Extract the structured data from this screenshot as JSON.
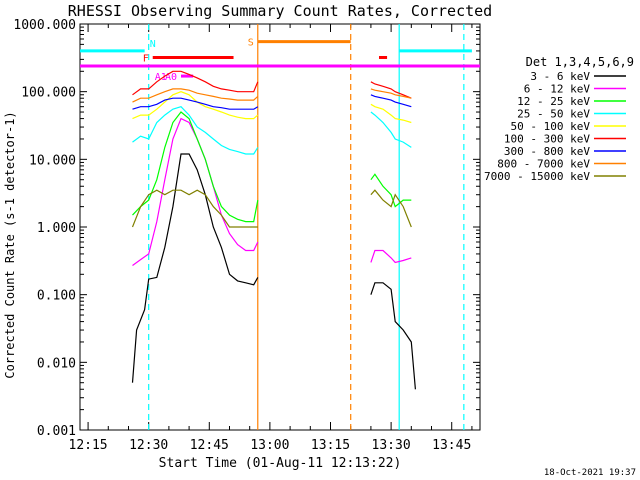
{
  "chart_data": {
    "type": "line",
    "title": "RHESSI Observing Summary Count Rates, Corrected",
    "xlabel": "Start Time (01-Aug-11 12:13:22)",
    "ylabel": "Corrected Count Rate (s-1 detector-1)",
    "yscale": "log",
    "ylim": [
      0.001,
      1000.0
    ],
    "xlim": [
      "12:13",
      "13:52"
    ],
    "x_ticks": [
      "12:15",
      "12:30",
      "12:45",
      "13:00",
      "13:15",
      "13:30",
      "13:45"
    ],
    "y_ticks": [
      "0.001",
      "0.010",
      "0.100",
      "1.000",
      "10.000",
      "100.000",
      "1000.000"
    ],
    "legend_title": "Det 1,3,4,5,6,9",
    "legend_position": "right",
    "timestamp": "18-Oct-2021 19:37",
    "gaps": [
      {
        "start": "12:57",
        "end": "13:25"
      }
    ],
    "series": [
      {
        "name": "3 - 6 keV",
        "color": "#000000",
        "points": [
          [
            "12:26",
            0.005
          ],
          [
            "12:27",
            0.03
          ],
          [
            "12:29",
            0.06
          ],
          [
            "12:30",
            0.17
          ],
          [
            "12:32",
            0.18
          ],
          [
            "12:34",
            0.5
          ],
          [
            "12:36",
            2.0
          ],
          [
            "12:38",
            12
          ],
          [
            "12:40",
            12
          ],
          [
            "12:42",
            7
          ],
          [
            "12:44",
            3
          ],
          [
            "12:46",
            1.0
          ],
          [
            "12:48",
            0.5
          ],
          [
            "12:50",
            0.2
          ],
          [
            "12:52",
            0.16
          ],
          [
            "12:54",
            0.15
          ],
          [
            "12:56",
            0.14
          ],
          [
            "12:57",
            0.18
          ]
        ],
        "points2": [
          [
            "13:25",
            0.1
          ],
          [
            "13:26",
            0.15
          ],
          [
            "13:28",
            0.15
          ],
          [
            "13:30",
            0.12
          ],
          [
            "13:31",
            0.04
          ],
          [
            "13:33",
            0.03
          ],
          [
            "13:35",
            0.02
          ],
          [
            "13:36",
            0.004
          ]
        ]
      },
      {
        "name": "6 - 12 keV",
        "color": "#ff00ff",
        "points": [
          [
            "12:26",
            0.27
          ],
          [
            "12:28",
            0.33
          ],
          [
            "12:30",
            0.4
          ],
          [
            "12:32",
            1.2
          ],
          [
            "12:34",
            5
          ],
          [
            "12:36",
            20
          ],
          [
            "12:38",
            40
          ],
          [
            "12:40",
            35
          ],
          [
            "12:42",
            20
          ],
          [
            "12:44",
            10
          ],
          [
            "12:46",
            4
          ],
          [
            "12:48",
            1.5
          ],
          [
            "12:50",
            0.8
          ],
          [
            "12:52",
            0.55
          ],
          [
            "12:54",
            0.45
          ],
          [
            "12:56",
            0.45
          ],
          [
            "12:57",
            0.6
          ]
        ],
        "points2": [
          [
            "13:25",
            0.3
          ],
          [
            "13:26",
            0.45
          ],
          [
            "13:28",
            0.45
          ],
          [
            "13:30",
            0.35
          ],
          [
            "13:31",
            0.3
          ],
          [
            "13:33",
            0.32
          ],
          [
            "13:35",
            0.35
          ]
        ]
      },
      {
        "name": "12 - 25 keV",
        "color": "#00ff00",
        "points": [
          [
            "12:26",
            1.5
          ],
          [
            "12:28",
            2.0
          ],
          [
            "12:30",
            2.5
          ],
          [
            "12:32",
            5
          ],
          [
            "12:34",
            15
          ],
          [
            "12:36",
            35
          ],
          [
            "12:38",
            50
          ],
          [
            "12:40",
            40
          ],
          [
            "12:42",
            20
          ],
          [
            "12:44",
            10
          ],
          [
            "12:46",
            4
          ],
          [
            "12:48",
            2.0
          ],
          [
            "12:50",
            1.5
          ],
          [
            "12:52",
            1.3
          ],
          [
            "12:54",
            1.2
          ],
          [
            "12:56",
            1.2
          ],
          [
            "12:57",
            2.5
          ]
        ],
        "points2": [
          [
            "13:25",
            5
          ],
          [
            "13:26",
            6
          ],
          [
            "13:28",
            4
          ],
          [
            "13:30",
            3
          ],
          [
            "13:31",
            2
          ],
          [
            "13:33",
            2.5
          ],
          [
            "13:35",
            2.5
          ]
        ]
      },
      {
        "name": "25 - 50 keV",
        "color": "#00ffff",
        "points": [
          [
            "12:26",
            18
          ],
          [
            "12:28",
            22
          ],
          [
            "12:30",
            20
          ],
          [
            "12:32",
            35
          ],
          [
            "12:34",
            45
          ],
          [
            "12:36",
            55
          ],
          [
            "12:38",
            60
          ],
          [
            "12:40",
            45
          ],
          [
            "12:42",
            30
          ],
          [
            "12:44",
            25
          ],
          [
            "12:46",
            20
          ],
          [
            "12:48",
            16
          ],
          [
            "12:50",
            14
          ],
          [
            "12:52",
            13
          ],
          [
            "12:54",
            12
          ],
          [
            "12:56",
            12
          ],
          [
            "12:57",
            15
          ]
        ],
        "points2": [
          [
            "13:25",
            50
          ],
          [
            "13:26",
            45
          ],
          [
            "13:28",
            35
          ],
          [
            "13:30",
            25
          ],
          [
            "13:31",
            20
          ],
          [
            "13:33",
            18
          ],
          [
            "13:35",
            15
          ]
        ]
      },
      {
        "name": "50 - 100 keV",
        "color": "#ffff00",
        "points": [
          [
            "12:26",
            40
          ],
          [
            "12:28",
            45
          ],
          [
            "12:30",
            45
          ],
          [
            "12:32",
            55
          ],
          [
            "12:34",
            70
          ],
          [
            "12:36",
            90
          ],
          [
            "12:38",
            100
          ],
          [
            "12:40",
            90
          ],
          [
            "12:42",
            70
          ],
          [
            "12:44",
            60
          ],
          [
            "12:46",
            55
          ],
          [
            "12:48",
            50
          ],
          [
            "12:50",
            45
          ],
          [
            "12:52",
            42
          ],
          [
            "12:54",
            40
          ],
          [
            "12:56",
            40
          ],
          [
            "12:57",
            45
          ]
        ],
        "points2": [
          [
            "13:25",
            65
          ],
          [
            "13:26",
            60
          ],
          [
            "13:28",
            55
          ],
          [
            "13:30",
            45
          ],
          [
            "13:31",
            40
          ],
          [
            "13:33",
            38
          ],
          [
            "13:35",
            35
          ]
        ]
      },
      {
        "name": "100 - 300 keV",
        "color": "#ff0000",
        "points": [
          [
            "12:26",
            90
          ],
          [
            "12:28",
            110
          ],
          [
            "12:30",
            110
          ],
          [
            "12:32",
            140
          ],
          [
            "12:34",
            170
          ],
          [
            "12:36",
            200
          ],
          [
            "12:38",
            200
          ],
          [
            "12:40",
            180
          ],
          [
            "12:42",
            160
          ],
          [
            "12:44",
            140
          ],
          [
            "12:46",
            120
          ],
          [
            "12:48",
            110
          ],
          [
            "12:50",
            105
          ],
          [
            "12:52",
            100
          ],
          [
            "12:54",
            100
          ],
          [
            "12:56",
            100
          ],
          [
            "12:57",
            140
          ]
        ],
        "points2": [
          [
            "13:25",
            140
          ],
          [
            "13:26",
            130
          ],
          [
            "13:28",
            120
          ],
          [
            "13:30",
            110
          ],
          [
            "13:31",
            100
          ],
          [
            "13:33",
            90
          ],
          [
            "13:35",
            80
          ]
        ]
      },
      {
        "name": "300 - 800 keV",
        "color": "#0000ff",
        "points": [
          [
            "12:26",
            55
          ],
          [
            "12:28",
            60
          ],
          [
            "12:30",
            60
          ],
          [
            "12:32",
            65
          ],
          [
            "12:34",
            75
          ],
          [
            "12:36",
            80
          ],
          [
            "12:38",
            80
          ],
          [
            "12:40",
            75
          ],
          [
            "12:42",
            70
          ],
          [
            "12:44",
            65
          ],
          [
            "12:46",
            60
          ],
          [
            "12:48",
            58
          ],
          [
            "12:50",
            55
          ],
          [
            "12:52",
            55
          ],
          [
            "12:54",
            55
          ],
          [
            "12:56",
            55
          ],
          [
            "12:57",
            60
          ]
        ],
        "points2": [
          [
            "13:25",
            90
          ],
          [
            "13:26",
            85
          ],
          [
            "13:28",
            80
          ],
          [
            "13:30",
            75
          ],
          [
            "13:31",
            70
          ],
          [
            "13:33",
            65
          ],
          [
            "13:35",
            60
          ]
        ]
      },
      {
        "name": "800 - 7000 keV",
        "color": "#ff8000",
        "points": [
          [
            "12:26",
            70
          ],
          [
            "12:28",
            80
          ],
          [
            "12:30",
            80
          ],
          [
            "12:32",
            90
          ],
          [
            "12:34",
            100
          ],
          [
            "12:36",
            110
          ],
          [
            "12:38",
            110
          ],
          [
            "12:40",
            105
          ],
          [
            "12:42",
            95
          ],
          [
            "12:44",
            90
          ],
          [
            "12:46",
            85
          ],
          [
            "12:48",
            80
          ],
          [
            "12:50",
            78
          ],
          [
            "12:52",
            75
          ],
          [
            "12:54",
            75
          ],
          [
            "12:56",
            75
          ],
          [
            "12:57",
            85
          ]
        ],
        "points2": [
          [
            "13:25",
            110
          ],
          [
            "13:26",
            105
          ],
          [
            "13:28",
            100
          ],
          [
            "13:30",
            95
          ],
          [
            "13:31",
            90
          ],
          [
            "13:33",
            85
          ],
          [
            "13:35",
            80
          ]
        ]
      },
      {
        "name": "7000 - 15000 keV",
        "color": "#808000",
        "points": [
          [
            "12:26",
            1.0
          ],
          [
            "12:28",
            2.0
          ],
          [
            "12:30",
            3.0
          ],
          [
            "12:32",
            3.5
          ],
          [
            "12:34",
            3.0
          ],
          [
            "12:36",
            3.5
          ],
          [
            "12:38",
            3.5
          ],
          [
            "12:40",
            3.0
          ],
          [
            "12:42",
            3.5
          ],
          [
            "12:44",
            3.0
          ],
          [
            "12:46",
            2.0
          ],
          [
            "12:48",
            1.5
          ],
          [
            "12:50",
            1.0
          ],
          [
            "12:52",
            1.0
          ],
          [
            "12:54",
            1.0
          ],
          [
            "12:56",
            1.0
          ],
          [
            "12:57",
            1.0
          ]
        ],
        "points2": [
          [
            "13:25",
            3.0
          ],
          [
            "13:26",
            3.5
          ],
          [
            "13:28",
            2.5
          ],
          [
            "13:30",
            2.0
          ],
          [
            "13:31",
            3.0
          ],
          [
            "13:33",
            2.0
          ],
          [
            "13:35",
            1.0
          ]
        ]
      }
    ],
    "flag_bars": [
      {
        "label": "",
        "color": "#00ffff",
        "segments": [
          [
            "12:13",
            "12:29"
          ],
          [
            "13:32",
            "13:50"
          ]
        ],
        "value": 400
      },
      {
        "label": "F",
        "color": "#ff0000",
        "segments": [
          [
            "12:31",
            "12:51"
          ],
          [
            "13:27",
            "13:29"
          ]
        ],
        "value": 320
      },
      {
        "label": "S",
        "color": "#ff8000",
        "segments": [
          [
            "12:57",
            "13:20"
          ]
        ],
        "value": 550
      },
      {
        "label": "",
        "color": "#ff00ff",
        "segments": [
          [
            "12:13",
            "13:52"
          ]
        ],
        "value": 240
      },
      {
        "label": "A0",
        "color": "#ff00ff",
        "segments": [
          [
            "12:38",
            "12:41"
          ]
        ],
        "value": 170
      }
    ],
    "flag_labels": [
      {
        "label": "N",
        "color": "#00ffff",
        "time": "12:31",
        "value": 520
      },
      {
        "label": "A1",
        "color": "#ff00ff",
        "time": "12:33",
        "value": 170
      }
    ],
    "vlines": [
      {
        "time": "12:30",
        "color": "#00ffff",
        "style": "dashed"
      },
      {
        "time": "12:57",
        "color": "#ff8000",
        "style": "solid"
      },
      {
        "time": "13:20",
        "color": "#ff8000",
        "style": "dashed"
      },
      {
        "time": "13:32",
        "color": "#00ffff",
        "style": "solid"
      },
      {
        "time": "13:48",
        "color": "#00ffff",
        "style": "dashed"
      }
    ]
  }
}
